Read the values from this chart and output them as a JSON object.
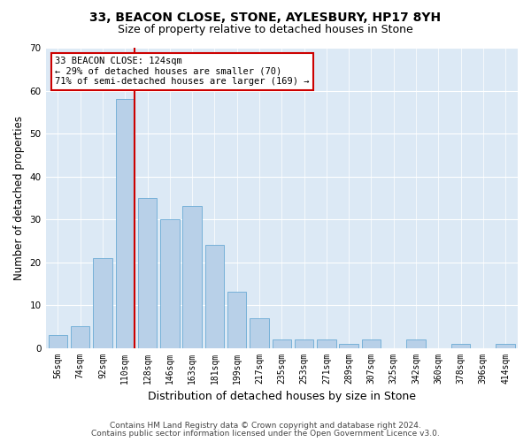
{
  "title1": "33, BEACON CLOSE, STONE, AYLESBURY, HP17 8YH",
  "title2": "Size of property relative to detached houses in Stone",
  "xlabel": "Distribution of detached houses by size in Stone",
  "ylabel": "Number of detached properties",
  "categories": [
    "56sqm",
    "74sqm",
    "92sqm",
    "110sqm",
    "128sqm",
    "146sqm",
    "163sqm",
    "181sqm",
    "199sqm",
    "217sqm",
    "235sqm",
    "253sqm",
    "271sqm",
    "289sqm",
    "307sqm",
    "325sqm",
    "342sqm",
    "360sqm",
    "378sqm",
    "396sqm",
    "414sqm"
  ],
  "values": [
    3,
    5,
    21,
    58,
    35,
    30,
    33,
    24,
    13,
    7,
    2,
    2,
    2,
    1,
    2,
    0,
    2,
    0,
    1,
    0,
    1
  ],
  "bar_color": "#b8d0e8",
  "bar_edge_color": "#6aaad4",
  "highlight_line_index": 3,
  "highlight_line_color": "#cc0000",
  "ylim": [
    0,
    70
  ],
  "yticks": [
    0,
    10,
    20,
    30,
    40,
    50,
    60,
    70
  ],
  "annotation_text": "33 BEACON CLOSE: 124sqm\n← 29% of detached houses are smaller (70)\n71% of semi-detached houses are larger (169) →",
  "annotation_box_facecolor": "#ffffff",
  "annotation_box_edgecolor": "#cc0000",
  "footer1": "Contains HM Land Registry data © Crown copyright and database right 2024.",
  "footer2": "Contains public sector information licensed under the Open Government Licence v3.0.",
  "fig_facecolor": "#ffffff",
  "ax_facecolor": "#dce9f5",
  "grid_color": "#ffffff",
  "title1_fontsize": 10,
  "title2_fontsize": 9,
  "tick_fontsize": 7,
  "ylabel_fontsize": 8.5,
  "xlabel_fontsize": 9,
  "footer_fontsize": 6.5,
  "annotation_fontsize": 7.5
}
